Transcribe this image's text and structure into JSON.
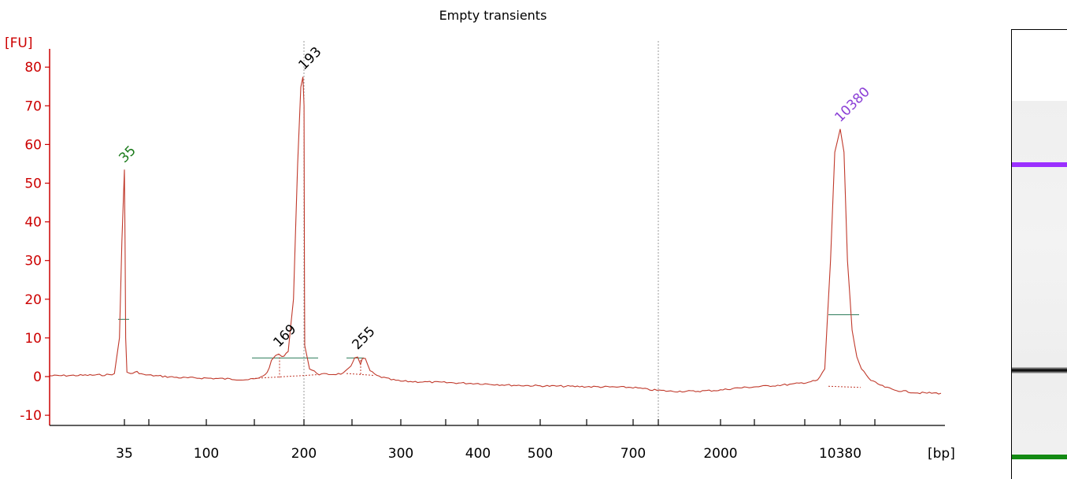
{
  "chart_data": {
    "type": "line",
    "title": "Empty transients",
    "ylabel": "[FU]",
    "xlabel": "[bp]",
    "ylim": [
      -12,
      86
    ],
    "yticks": [
      -10,
      0,
      10,
      20,
      30,
      40,
      50,
      60,
      70,
      80
    ],
    "x_tick_labels": [
      "35",
      "100",
      "200",
      "300",
      "400",
      "500",
      "700",
      "2000",
      "10380"
    ],
    "grid": false,
    "series": [
      {
        "color": "#c0392b",
        "points": [
          [
            20,
            0.2
          ],
          [
            30,
            0.4
          ],
          [
            32,
            0.5
          ],
          [
            33,
            0.8
          ],
          [
            34,
            10
          ],
          [
            34.5,
            35
          ],
          [
            35,
            53.5
          ],
          [
            35.5,
            35
          ],
          [
            36,
            10
          ],
          [
            37,
            1
          ],
          [
            40,
            0.8
          ],
          [
            45,
            1.2
          ],
          [
            50,
            0.5
          ],
          [
            60,
            0.2
          ],
          [
            80,
            -0.3
          ],
          [
            100,
            -0.4
          ],
          [
            120,
            -0.6
          ],
          [
            140,
            -0.8
          ],
          [
            150,
            -0.5
          ],
          [
            158,
            1
          ],
          [
            162,
            4
          ],
          [
            166,
            5.5
          ],
          [
            169,
            5.8
          ],
          [
            172,
            5
          ],
          [
            178,
            6.5
          ],
          [
            183,
            20
          ],
          [
            187,
            55
          ],
          [
            190,
            75
          ],
          [
            192,
            77.5
          ],
          [
            194,
            70
          ],
          [
            196,
            45
          ],
          [
            198,
            22
          ],
          [
            200,
            8
          ],
          [
            205,
            2
          ],
          [
            215,
            0.6
          ],
          [
            230,
            0.6
          ],
          [
            240,
            0.8
          ],
          [
            248,
            2.5
          ],
          [
            252,
            5
          ],
          [
            255,
            5.2
          ],
          [
            258,
            3
          ],
          [
            260,
            4.7
          ],
          [
            263,
            4.5
          ],
          [
            268,
            1.5
          ],
          [
            275,
            0.2
          ],
          [
            290,
            -0.8
          ],
          [
            300,
            -1.2
          ],
          [
            350,
            -1.5
          ],
          [
            400,
            -1.8
          ],
          [
            450,
            -2.2
          ],
          [
            500,
            -2.4
          ],
          [
            600,
            -2.6
          ],
          [
            700,
            -2.8
          ],
          [
            900,
            -3.4
          ],
          [
            1200,
            -3.8
          ],
          [
            1600,
            -3.8
          ],
          [
            2000,
            -3.5
          ],
          [
            3000,
            -3
          ],
          [
            5000,
            -2.5
          ],
          [
            7000,
            -2
          ],
          [
            8000,
            -1.5
          ],
          [
            8800,
            -1
          ],
          [
            9300,
            2
          ],
          [
            9700,
            30
          ],
          [
            10000,
            58
          ],
          [
            10380,
            64
          ],
          [
            10700,
            58
          ],
          [
            11000,
            30
          ],
          [
            11400,
            12
          ],
          [
            11800,
            5
          ],
          [
            12200,
            2
          ],
          [
            13000,
            -1
          ],
          [
            14000,
            -2.5
          ],
          [
            15000,
            -3.5
          ],
          [
            17000,
            -4.2
          ],
          [
            19000,
            -4.3
          ]
        ]
      }
    ],
    "peak_labels": [
      {
        "text": "35",
        "x": 35,
        "y": 53.5,
        "color": "#1a7a1a"
      },
      {
        "text": "193",
        "x": 193,
        "y": 77.5,
        "color": "#000000"
      },
      {
        "text": "169",
        "x": 169,
        "y": 5.8,
        "color": "#000000"
      },
      {
        "text": "255",
        "x": 255,
        "y": 5.2,
        "color": "#000000"
      },
      {
        "text": "10380",
        "x": 10380,
        "y": 64,
        "color": "#8b3fd6"
      }
    ],
    "reference_lines": [
      193,
      1000
    ],
    "gel_bands": [
      {
        "bp": 10380,
        "color": "#9b30ff"
      },
      {
        "bp": 193,
        "color": "#111111"
      },
      {
        "bp": 35,
        "color": "#138a13"
      }
    ]
  }
}
